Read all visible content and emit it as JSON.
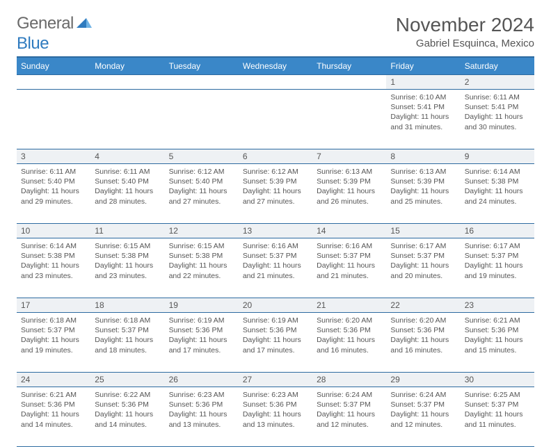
{
  "logo": {
    "word1": "General",
    "word2": "Blue",
    "word1_color": "#6a6a6a",
    "word2_color": "#2f7bbf",
    "mark_color": "#2f7bbf"
  },
  "header": {
    "month_title": "November 2024",
    "location": "Gabriel Esquinca, Mexico"
  },
  "colors": {
    "header_bg": "#3a87c8",
    "header_border": "#2c6aa0",
    "daynum_bg": "#eef1f4",
    "text": "#555555",
    "page_bg": "#ffffff"
  },
  "layout": {
    "columns": 7,
    "col_width_pct": 14.28,
    "font_family": "Arial",
    "day_text_fontsize": 10.5,
    "header_fontsize": 12,
    "title_fontsize": 28,
    "location_fontsize": 15
  },
  "weekdays": [
    "Sunday",
    "Monday",
    "Tuesday",
    "Wednesday",
    "Thursday",
    "Friday",
    "Saturday"
  ],
  "weeks": [
    {
      "nums": [
        "",
        "",
        "",
        "",
        "",
        "1",
        "2"
      ],
      "cells": [
        null,
        null,
        null,
        null,
        null,
        {
          "sr": "Sunrise: 6:10 AM",
          "ss": "Sunset: 5:41 PM",
          "dl": "Daylight: 11 hours and 31 minutes."
        },
        {
          "sr": "Sunrise: 6:11 AM",
          "ss": "Sunset: 5:41 PM",
          "dl": "Daylight: 11 hours and 30 minutes."
        }
      ]
    },
    {
      "nums": [
        "3",
        "4",
        "5",
        "6",
        "7",
        "8",
        "9"
      ],
      "cells": [
        {
          "sr": "Sunrise: 6:11 AM",
          "ss": "Sunset: 5:40 PM",
          "dl": "Daylight: 11 hours and 29 minutes."
        },
        {
          "sr": "Sunrise: 6:11 AM",
          "ss": "Sunset: 5:40 PM",
          "dl": "Daylight: 11 hours and 28 minutes."
        },
        {
          "sr": "Sunrise: 6:12 AM",
          "ss": "Sunset: 5:40 PM",
          "dl": "Daylight: 11 hours and 27 minutes."
        },
        {
          "sr": "Sunrise: 6:12 AM",
          "ss": "Sunset: 5:39 PM",
          "dl": "Daylight: 11 hours and 27 minutes."
        },
        {
          "sr": "Sunrise: 6:13 AM",
          "ss": "Sunset: 5:39 PM",
          "dl": "Daylight: 11 hours and 26 minutes."
        },
        {
          "sr": "Sunrise: 6:13 AM",
          "ss": "Sunset: 5:39 PM",
          "dl": "Daylight: 11 hours and 25 minutes."
        },
        {
          "sr": "Sunrise: 6:14 AM",
          "ss": "Sunset: 5:38 PM",
          "dl": "Daylight: 11 hours and 24 minutes."
        }
      ]
    },
    {
      "nums": [
        "10",
        "11",
        "12",
        "13",
        "14",
        "15",
        "16"
      ],
      "cells": [
        {
          "sr": "Sunrise: 6:14 AM",
          "ss": "Sunset: 5:38 PM",
          "dl": "Daylight: 11 hours and 23 minutes."
        },
        {
          "sr": "Sunrise: 6:15 AM",
          "ss": "Sunset: 5:38 PM",
          "dl": "Daylight: 11 hours and 23 minutes."
        },
        {
          "sr": "Sunrise: 6:15 AM",
          "ss": "Sunset: 5:38 PM",
          "dl": "Daylight: 11 hours and 22 minutes."
        },
        {
          "sr": "Sunrise: 6:16 AM",
          "ss": "Sunset: 5:37 PM",
          "dl": "Daylight: 11 hours and 21 minutes."
        },
        {
          "sr": "Sunrise: 6:16 AM",
          "ss": "Sunset: 5:37 PM",
          "dl": "Daylight: 11 hours and 21 minutes."
        },
        {
          "sr": "Sunrise: 6:17 AM",
          "ss": "Sunset: 5:37 PM",
          "dl": "Daylight: 11 hours and 20 minutes."
        },
        {
          "sr": "Sunrise: 6:17 AM",
          "ss": "Sunset: 5:37 PM",
          "dl": "Daylight: 11 hours and 19 minutes."
        }
      ]
    },
    {
      "nums": [
        "17",
        "18",
        "19",
        "20",
        "21",
        "22",
        "23"
      ],
      "cells": [
        {
          "sr": "Sunrise: 6:18 AM",
          "ss": "Sunset: 5:37 PM",
          "dl": "Daylight: 11 hours and 19 minutes."
        },
        {
          "sr": "Sunrise: 6:18 AM",
          "ss": "Sunset: 5:37 PM",
          "dl": "Daylight: 11 hours and 18 minutes."
        },
        {
          "sr": "Sunrise: 6:19 AM",
          "ss": "Sunset: 5:36 PM",
          "dl": "Daylight: 11 hours and 17 minutes."
        },
        {
          "sr": "Sunrise: 6:19 AM",
          "ss": "Sunset: 5:36 PM",
          "dl": "Daylight: 11 hours and 17 minutes."
        },
        {
          "sr": "Sunrise: 6:20 AM",
          "ss": "Sunset: 5:36 PM",
          "dl": "Daylight: 11 hours and 16 minutes."
        },
        {
          "sr": "Sunrise: 6:20 AM",
          "ss": "Sunset: 5:36 PM",
          "dl": "Daylight: 11 hours and 16 minutes."
        },
        {
          "sr": "Sunrise: 6:21 AM",
          "ss": "Sunset: 5:36 PM",
          "dl": "Daylight: 11 hours and 15 minutes."
        }
      ]
    },
    {
      "nums": [
        "24",
        "25",
        "26",
        "27",
        "28",
        "29",
        "30"
      ],
      "cells": [
        {
          "sr": "Sunrise: 6:21 AM",
          "ss": "Sunset: 5:36 PM",
          "dl": "Daylight: 11 hours and 14 minutes."
        },
        {
          "sr": "Sunrise: 6:22 AM",
          "ss": "Sunset: 5:36 PM",
          "dl": "Daylight: 11 hours and 14 minutes."
        },
        {
          "sr": "Sunrise: 6:23 AM",
          "ss": "Sunset: 5:36 PM",
          "dl": "Daylight: 11 hours and 13 minutes."
        },
        {
          "sr": "Sunrise: 6:23 AM",
          "ss": "Sunset: 5:36 PM",
          "dl": "Daylight: 11 hours and 13 minutes."
        },
        {
          "sr": "Sunrise: 6:24 AM",
          "ss": "Sunset: 5:37 PM",
          "dl": "Daylight: 11 hours and 12 minutes."
        },
        {
          "sr": "Sunrise: 6:24 AM",
          "ss": "Sunset: 5:37 PM",
          "dl": "Daylight: 11 hours and 12 minutes."
        },
        {
          "sr": "Sunrise: 6:25 AM",
          "ss": "Sunset: 5:37 PM",
          "dl": "Daylight: 11 hours and 11 minutes."
        }
      ]
    }
  ]
}
